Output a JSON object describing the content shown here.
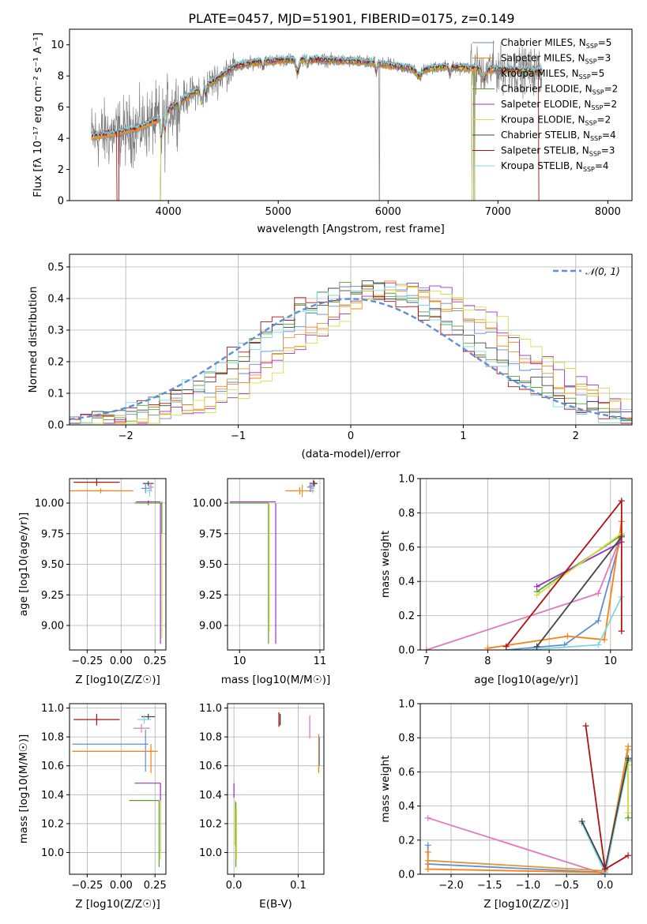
{
  "figure": {
    "title": "PLATE=0457, MJD=51901, FIBERID=0175, z=0.149"
  },
  "colors": {
    "Chabrier MILES": "#5f8ed6",
    "Salpeter MILES": "#ff7f0e",
    "Kroupa MILES": "#d99a3a",
    "Chabrier ELODIE": "#5aa02c",
    "Salpeter ELODIE": "#9b30c8",
    "Kroupa ELODIE": "#cfe04a",
    "Chabrier STELIB": "#444444",
    "Salpeter STELIB": "#b01010",
    "Kroupa STELIB": "#7fd7e4",
    "gaussian": "#5f8ed6",
    "data": "#808080",
    "pink": "#e377c2"
  },
  "chart_data": [
    {
      "id": "spectrum",
      "type": "line",
      "xlabel": "wavelength [Angstrom, rest frame]",
      "ylabel": "Flux [fλ 10⁻¹⁷ erg cm⁻² s⁻¹ A⁻¹]",
      "xlim": [
        3100,
        8220
      ],
      "ylim": [
        0,
        11
      ],
      "xticks": [
        4000,
        5000,
        6000,
        7000,
        8000
      ],
      "yticks": [
        0,
        2,
        4,
        6,
        8,
        10
      ],
      "legend_position": "top-right",
      "legend": [
        "Chabrier MILES, N_SSP=5",
        "Salpeter MILES, N_SSP=3",
        "Kroupa MILES, N_SSP=5",
        "Chabrier ELODIE, N_SSP=2",
        "Salpeter ELODIE, N_SSP=2",
        "Kroupa ELODIE, N_SSP=2",
        "Chabrier STELIB, N_SSP=4",
        "Salpeter STELIB, N_SSP=3",
        "Kroupa STELIB, N_SSP=4"
      ],
      "continuum_knots": [
        [
          3300,
          4.1
        ],
        [
          3500,
          4.3
        ],
        [
          3700,
          4.6
        ],
        [
          3900,
          5.2
        ],
        [
          4000,
          5.8
        ],
        [
          4200,
          6.8
        ],
        [
          4400,
          7.6
        ],
        [
          4600,
          8.6
        ],
        [
          4800,
          8.9
        ],
        [
          5000,
          9.0
        ],
        [
          5200,
          9.1
        ],
        [
          5500,
          9.0
        ],
        [
          5800,
          8.9
        ],
        [
          6000,
          8.7
        ],
        [
          6300,
          8.4
        ],
        [
          6500,
          8.6
        ],
        [
          6800,
          8.5
        ],
        [
          7100,
          8.4
        ],
        [
          7400,
          8.3
        ]
      ]
    },
    {
      "id": "residuals",
      "type": "line",
      "xlabel": "(data-model)/error",
      "ylabel": "Normed distribution",
      "xlim": [
        -2.5,
        2.5
      ],
      "ylim": [
        0,
        0.54
      ],
      "xticks": [
        -2,
        -1,
        0,
        1,
        2
      ],
      "yticks": [
        0.0,
        0.1,
        0.2,
        0.3,
        0.4,
        0.5
      ],
      "grid": true,
      "legend": [
        "N(0,1)"
      ],
      "legend_position": "top-right"
    },
    {
      "id": "age_vs_Z",
      "type": "scatter",
      "xlabel": "Z [log10(Z/Z☉)]",
      "ylabel": "age  [log10(age/yr)]",
      "xlim": [
        -0.38,
        0.33
      ],
      "ylim": [
        8.8,
        10.2
      ],
      "xticks": [
        -0.25,
        0.0,
        0.25
      ],
      "yticks": [
        9.0,
        9.25,
        9.5,
        9.75,
        10.0
      ],
      "grid": true
    },
    {
      "id": "age_vs_mass",
      "type": "scatter",
      "xlabel": "mass [log10(M/M☉)]",
      "ylabel": "",
      "xlim": [
        9.85,
        11.05
      ],
      "ylim": [
        8.8,
        10.2
      ],
      "xticks": [
        10,
        11
      ],
      "yticks": [
        9.0,
        9.25,
        9.5,
        9.75,
        10.0
      ],
      "grid": true
    },
    {
      "id": "weight_vs_age",
      "type": "line",
      "xlabel": "age  [log10(age/yr)]",
      "ylabel": "mass weight",
      "xlim": [
        6.9,
        10.35
      ],
      "ylim": [
        0,
        1
      ],
      "xticks": [
        7,
        8,
        9,
        10
      ],
      "yticks": [
        0.0,
        0.2,
        0.4,
        0.6,
        0.8,
        1.0
      ],
      "grid": true,
      "series": [
        {
          "color": "#e377c2",
          "points": [
            [
              7.0,
              0.0
            ],
            [
              9.8,
              0.33
            ],
            [
              10.18,
              0.67
            ]
          ]
        },
        {
          "color": "#5f8ed6",
          "points": [
            [
              8.3,
              0.0
            ],
            [
              9.25,
              0.03
            ],
            [
              9.8,
              0.17
            ],
            [
              10.18,
              0.67
            ]
          ]
        },
        {
          "color": "#ff7f0e",
          "points": [
            [
              8.0,
              0.01
            ],
            [
              9.3,
              0.08
            ],
            [
              9.9,
              0.06
            ],
            [
              10.18,
              0.75
            ]
          ]
        },
        {
          "color": "#7fd7e4",
          "points": [
            [
              8.6,
              0.0
            ],
            [
              9.8,
              0.03
            ],
            [
              10.18,
              0.31
            ]
          ]
        },
        {
          "color": "#5aa02c",
          "points": [
            [
              8.8,
              0.34
            ],
            [
              10.18,
              0.67
            ]
          ]
        },
        {
          "color": "#9b30c8",
          "points": [
            [
              8.8,
              0.37
            ],
            [
              10.18,
              0.63
            ]
          ]
        },
        {
          "color": "#cfe04a",
          "points": [
            [
              8.8,
              0.32
            ],
            [
              10.18,
              0.68
            ]
          ]
        },
        {
          "color": "#444444",
          "points": [
            [
              8.8,
              0.02
            ],
            [
              10.18,
              0.66
            ]
          ]
        },
        {
          "color": "#b01010",
          "points": [
            [
              8.3,
              0.02
            ],
            [
              10.18,
              0.87
            ],
            [
              10.18,
              0.11
            ]
          ]
        }
      ]
    },
    {
      "id": "mass_vs_Z",
      "type": "scatter",
      "xlabel": "Z [log10(Z/Z☉)]",
      "ylabel": "mass [log10(M/M☉)]",
      "xlim": [
        -0.38,
        0.33
      ],
      "ylim": [
        9.85,
        11.03
      ],
      "xticks": [
        -0.25,
        0.0,
        0.25
      ],
      "yticks": [
        10.0,
        10.2,
        10.4,
        10.6,
        10.8,
        11.0
      ],
      "grid": true
    },
    {
      "id": "mass_vs_EBV",
      "type": "scatter",
      "xlabel": "E(B-V)",
      "ylabel": "",
      "xlim": [
        -0.01,
        0.14
      ],
      "ylim": [
        9.85,
        11.03
      ],
      "xticks": [
        0.0,
        0.1
      ],
      "yticks": [
        10.0,
        10.2,
        10.4,
        10.6,
        10.8,
        11.0
      ],
      "grid": true
    },
    {
      "id": "weight_vs_Z",
      "type": "line",
      "xlabel": "Z [log10(Z/Z☉)]",
      "ylabel": "mass weight",
      "xlim": [
        -2.4,
        0.35
      ],
      "ylim": [
        0,
        1
      ],
      "xticks": [
        -2.0,
        -1.5,
        -1.0,
        -0.5,
        0.0
      ],
      "yticks": [
        0.0,
        0.2,
        0.4,
        0.6,
        0.8,
        1.0
      ],
      "grid": true,
      "series": [
        {
          "color": "#e377c2",
          "points": [
            [
              -2.3,
              0.33
            ],
            [
              0.0,
              0.0
            ],
            [
              0.3,
              0.67
            ]
          ]
        },
        {
          "color": "#5f8ed6",
          "points": [
            [
              -2.3,
              0.17
            ],
            [
              -2.3,
              0.06
            ],
            [
              0.0,
              0.01
            ],
            [
              0.3,
              0.67
            ]
          ]
        },
        {
          "color": "#ff7f0e",
          "points": [
            [
              -2.3,
              0.13
            ],
            [
              -2.3,
              0.03
            ],
            [
              0.0,
              0.01
            ],
            [
              0.3,
              0.75
            ]
          ]
        },
        {
          "color": "#d99a3a",
          "points": [
            [
              -2.3,
              0.08
            ],
            [
              0.0,
              0.02
            ],
            [
              0.3,
              0.73
            ]
          ]
        },
        {
          "color": "#7fd7e4",
          "points": [
            [
              -0.3,
              0.3
            ],
            [
              0.0,
              0.01
            ],
            [
              0.3,
              0.66
            ]
          ]
        },
        {
          "color": "#5aa02c",
          "points": [
            [
              0.3,
              0.33
            ],
            [
              0.3,
              0.67
            ]
          ]
        },
        {
          "color": "#cfe04a",
          "points": [
            [
              0.3,
              0.36
            ],
            [
              0.3,
              0.64
            ]
          ]
        },
        {
          "color": "#444444",
          "points": [
            [
              -0.3,
              0.31
            ],
            [
              0.0,
              0.03
            ],
            [
              0.3,
              0.68
            ]
          ]
        },
        {
          "color": "#b01010",
          "points": [
            [
              -0.25,
              0.87
            ],
            [
              0.0,
              0.03
            ],
            [
              0.3,
              0.11
            ]
          ]
        }
      ]
    }
  ]
}
